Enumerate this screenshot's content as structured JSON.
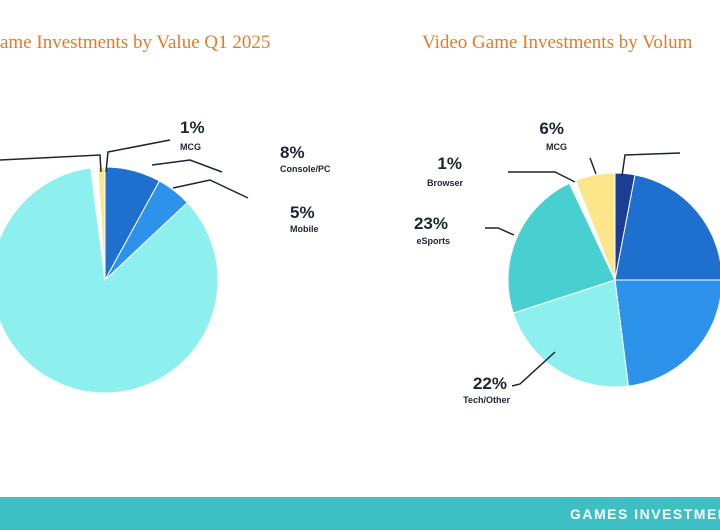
{
  "footer": "GAMES INVESTMENT",
  "chart_data": [
    {
      "type": "pie",
      "title": "ame Investments by Value Q1 2025",
      "categories": [
        "Console/PC",
        "Mobile",
        null,
        null,
        "MCG"
      ],
      "values": [
        8,
        5,
        85,
        1,
        1
      ],
      "value_labels": [
        "8%",
        "5%",
        null,
        null,
        "1%"
      ],
      "colors": [
        "#1f6fcf",
        "#2d93ea",
        "#8df0ef",
        "#ffffff",
        "#fde58a"
      ]
    },
    {
      "type": "pie",
      "title": "Video Game Investments by Volum",
      "categories": [
        null,
        null,
        null,
        "Tech/Other",
        "eSports",
        "Browser",
        "MCG"
      ],
      "values": [
        3,
        22,
        23,
        22,
        23,
        1,
        6
      ],
      "value_labels": [
        null,
        null,
        null,
        "22%",
        "23%",
        "1%",
        "6%"
      ],
      "colors": [
        "#1b3e94",
        "#1f6fcf",
        "#2d93ea",
        "#8df0ef",
        "#47d0cf",
        "#ffffff",
        "#fde58a"
      ]
    }
  ]
}
